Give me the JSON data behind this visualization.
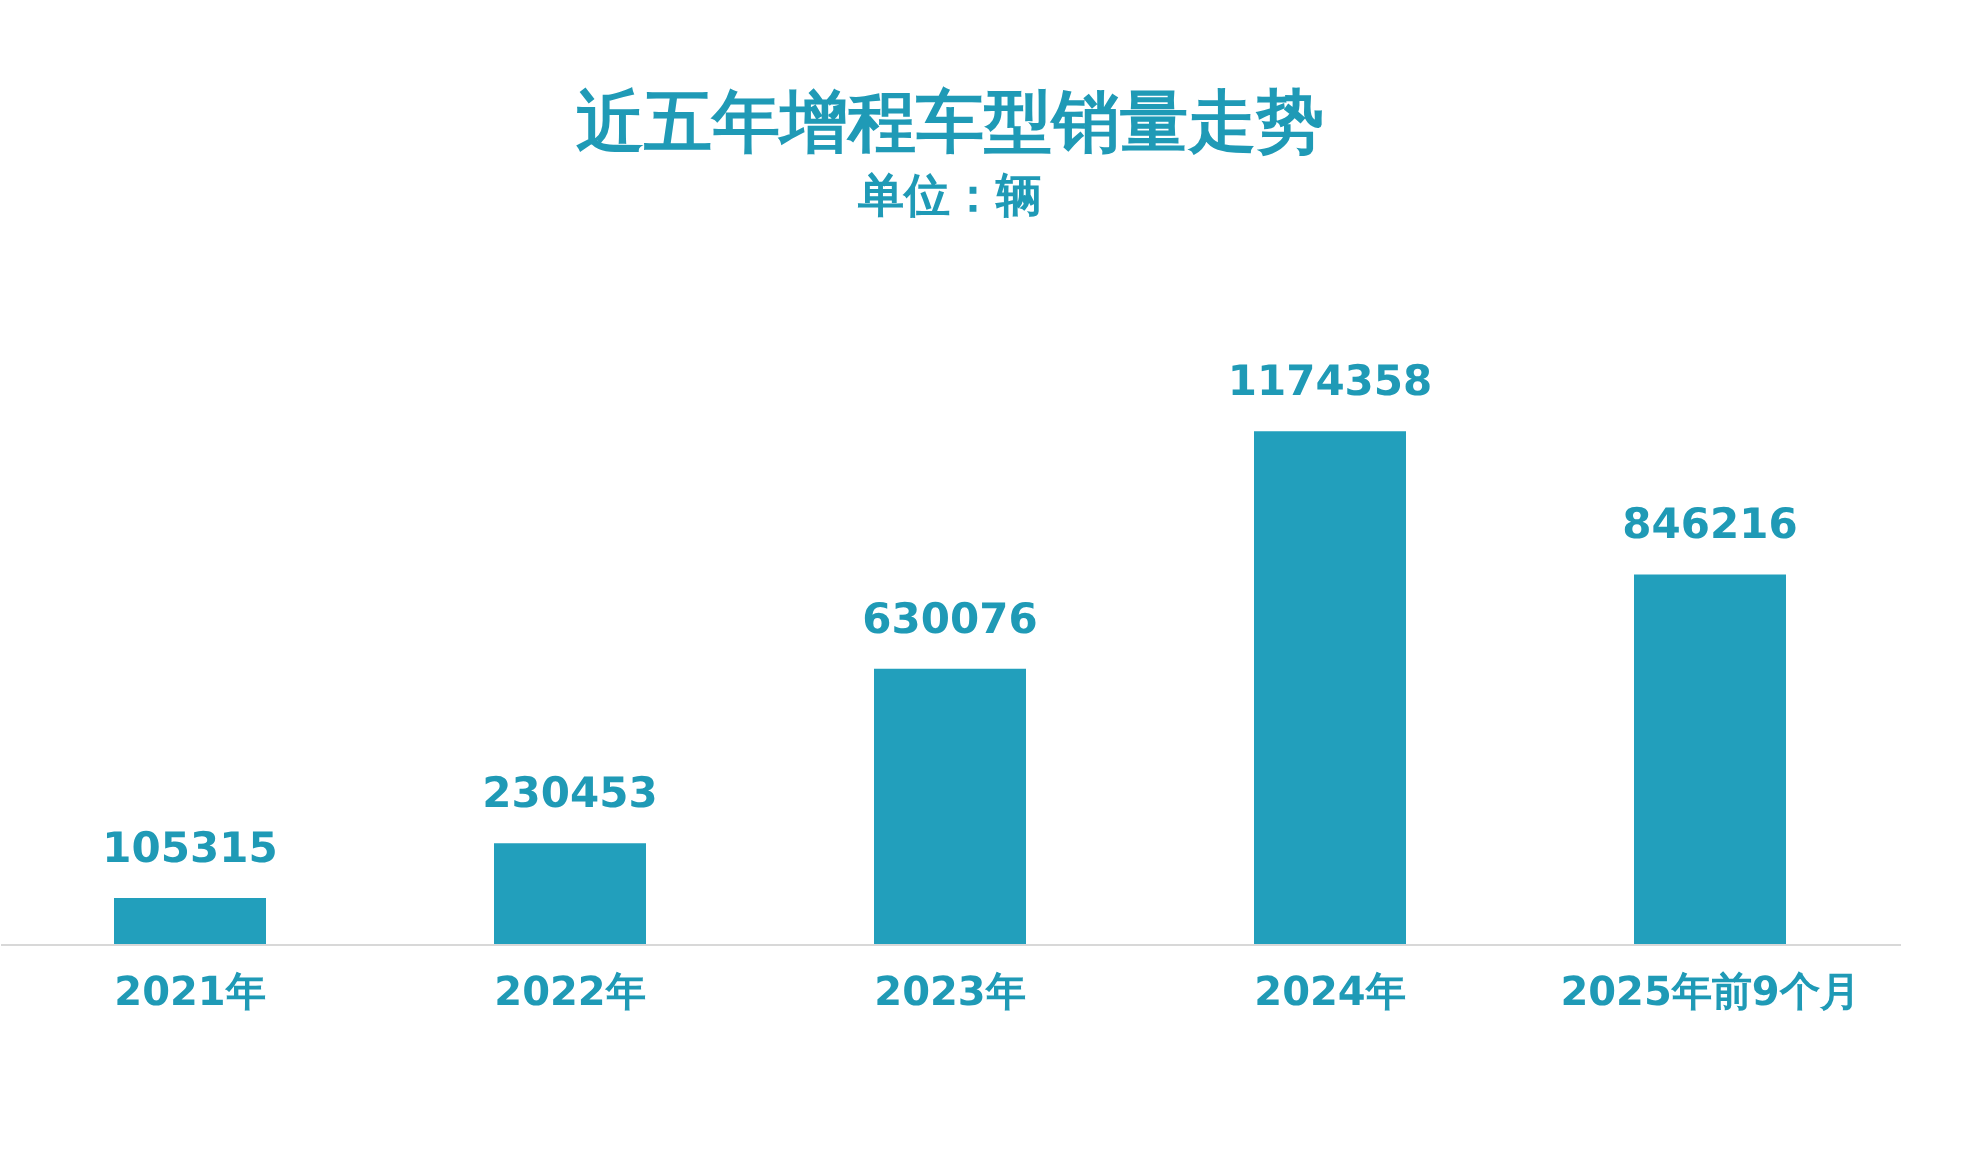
{
  "chart_data": {
    "type": "bar",
    "title": "近五年增程车型销量走势",
    "subtitle": "单位：辆",
    "categories": [
      "2021年",
      "2022年",
      "2023年",
      "2024年",
      "2025年前9个月"
    ],
    "values": [
      105315,
      230453,
      630076,
      1174358,
      846216
    ],
    "color": "#229fbc",
    "data_labels": true,
    "grid": false
  }
}
